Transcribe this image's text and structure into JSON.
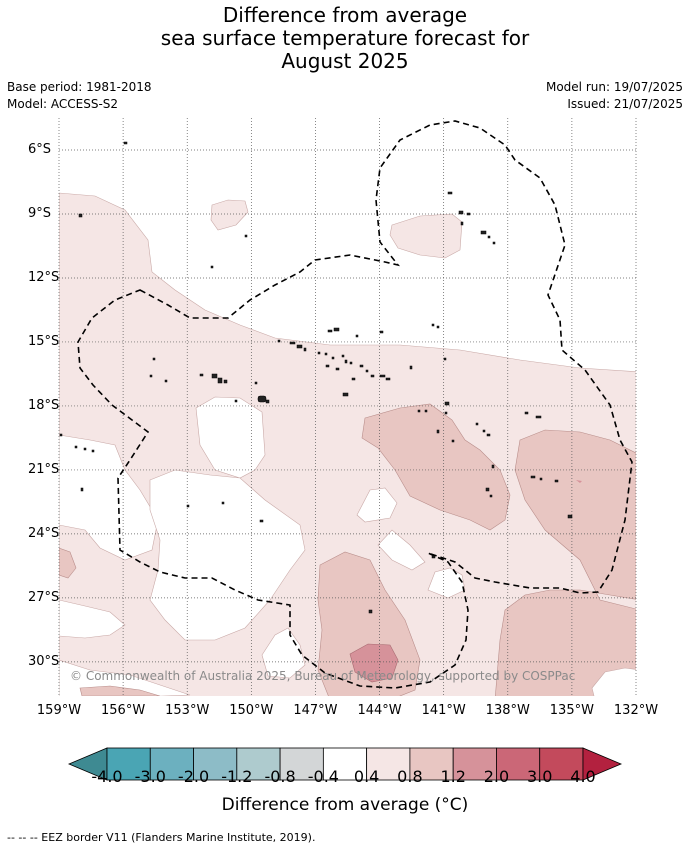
{
  "title": {
    "line1": "Difference from average",
    "line2": "sea surface temperature forecast for",
    "line3": "August 2025"
  },
  "meta": {
    "base_period": "Base period: 1981-2018",
    "model": "Model: ACCESS-S2",
    "model_run": "Model run: 19/07/2025",
    "issued": "Issued: 21/07/2025"
  },
  "map": {
    "lat_labels": [
      "6°S",
      "9°S",
      "12°S",
      "15°S",
      "18°S",
      "21°S",
      "24°S",
      "27°S",
      "30°S"
    ],
    "lat_values": [
      -6,
      -9,
      -12,
      -15,
      -18,
      -21,
      -24,
      -27,
      -30
    ],
    "lon_labels": [
      "159°W",
      "156°W",
      "153°W",
      "150°W",
      "147°W",
      "144°W",
      "141°W",
      "138°W",
      "135°W",
      "132°W"
    ],
    "lon_values": [
      -159,
      -156,
      -153,
      -150,
      -147,
      -144,
      -141,
      -138,
      -135,
      -132
    ],
    "lon_range": [
      -159,
      -132
    ],
    "lat_range": [
      -4.5,
      -31.6
    ],
    "copyright": "© Commonwealth of Australia 2025, Bureau of Meteorology, supported by COSPPac"
  },
  "colorbar": {
    "labels": [
      "-4.0",
      "-3.0",
      "-2.0",
      "-1.2",
      "-0.8",
      "-0.4",
      "0.4",
      "0.8",
      "1.2",
      "2.0",
      "3.0",
      "4.0"
    ],
    "colors": [
      "#3e8a92",
      "#4aa5b4",
      "#6cb0bf",
      "#8dbcc7",
      "#aecbce",
      "#d3d6d7",
      "#ffffff",
      "#f5e6e5",
      "#e8c6c2",
      "#d6929a",
      "#cb6777",
      "#c34a5c",
      "#b3213f"
    ],
    "title": "Difference from average (°C)"
  },
  "legend_note": "-- -- -- EEZ border V11 (Flanders Marine Institute, 2019).",
  "colors": {
    "anomaly_light": "#f5e6e5",
    "anomaly_mid": "#e8c6c2",
    "anomaly_strong": "#d6929a",
    "eez_border": "#000000"
  }
}
